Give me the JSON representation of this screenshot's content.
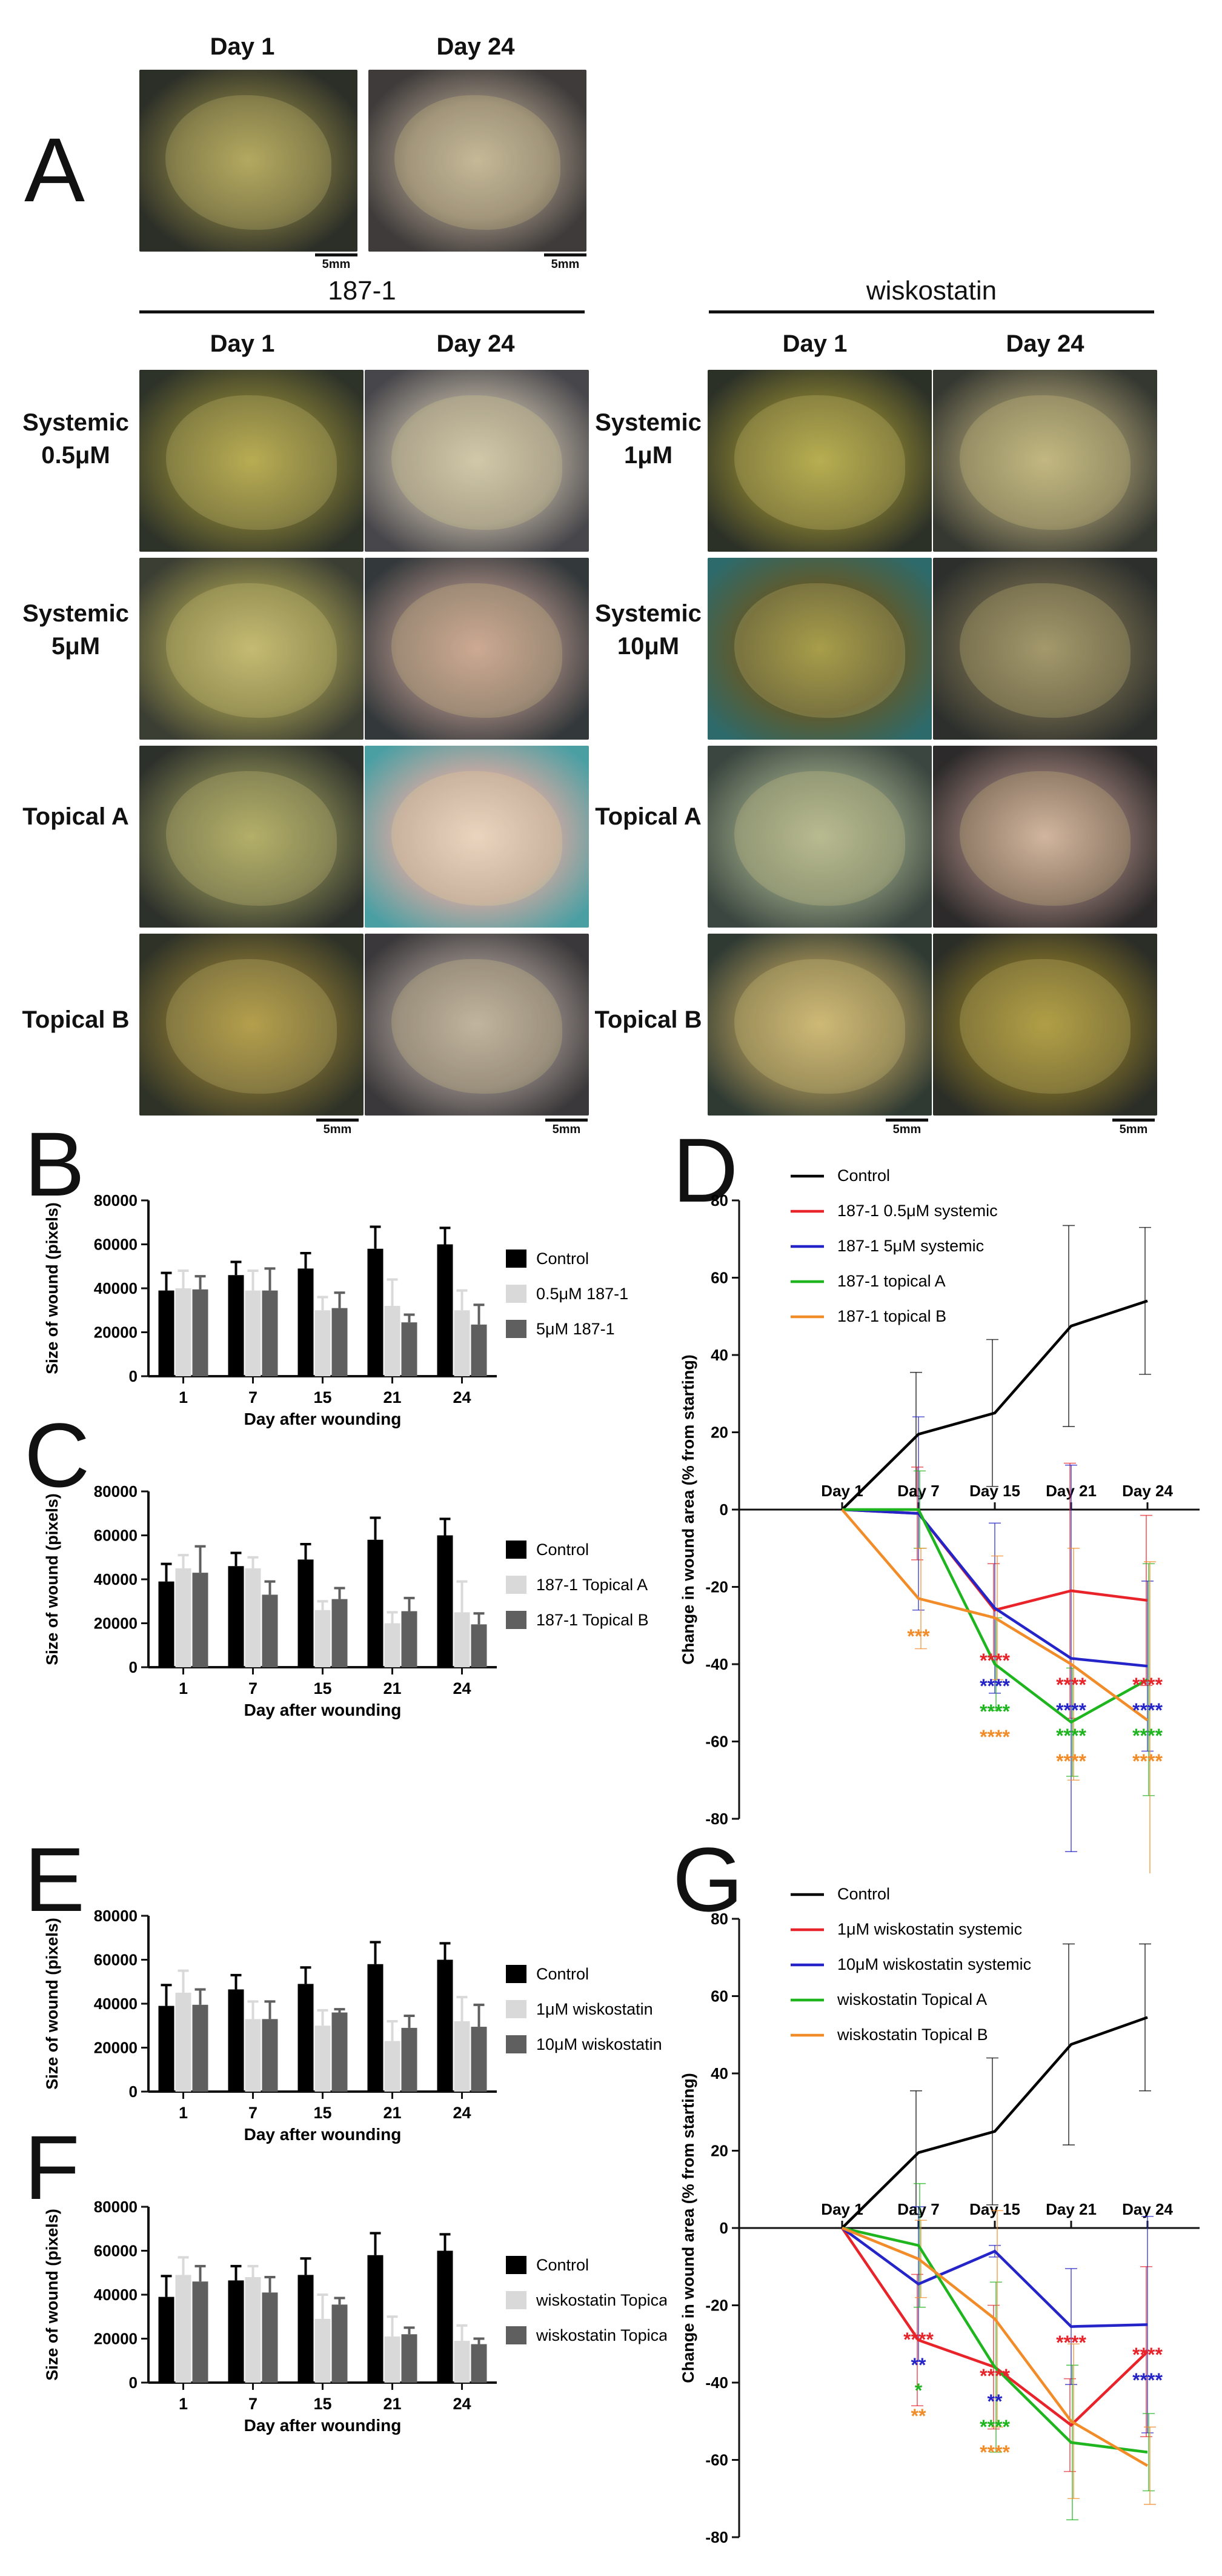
{
  "panelA": {
    "letter": "A",
    "top": {
      "day1": "Day 1",
      "day24": "Day 24",
      "photos": [
        {
          "bg": "#3a3f38"
        },
        {
          "bg": "#5d5a57"
        }
      ],
      "scalebars": [
        "5mm",
        "5mm"
      ]
    },
    "group1871": {
      "title": "187-1",
      "day1": "Day 1",
      "day24": "Day 24",
      "rows": [
        "Systemic 0.5μM",
        "Systemic 5μM",
        "Topical A",
        "Topical B"
      ],
      "scalebars": [
        "5mm",
        "5mm"
      ]
    },
    "groupWisko": {
      "title": "wiskostatin",
      "day1": "Day 1",
      "day24": "Day 24",
      "rows": [
        "Systemic 1μM",
        "Systemic 10μM",
        "Topical A",
        "Topical B"
      ],
      "scalebars": [
        "5mm",
        "5mm"
      ]
    }
  },
  "letters": {
    "B": "B",
    "C": "C",
    "D": "D",
    "E": "E",
    "F": "F",
    "G": "G"
  },
  "colors": {
    "black": "#000000",
    "light": "#d9d9d9",
    "dark": "#5f5f5f",
    "red": "#e8232a",
    "blue": "#2424c8",
    "green": "#1fb51f",
    "orange": "#f28c28"
  },
  "chart_data": [
    {
      "id": "B",
      "type": "bar",
      "categories": [
        "1",
        "7",
        "15",
        "21",
        "24"
      ],
      "xlabel": "Day after wounding",
      "ylabel": "Size of wound (pixels)",
      "ylim": [
        0,
        80000
      ],
      "yticks": [
        "0",
        "20000",
        "40000",
        "60000",
        "80000"
      ],
      "series": [
        {
          "name": "Control",
          "color": "#000000",
          "values": [
            39000,
            46000,
            49000,
            58000,
            60000
          ],
          "err": [
            8000,
            6000,
            7000,
            10000,
            7500
          ]
        },
        {
          "name": "0.5μM 187-1",
          "color": "#d9d9d9",
          "values": [
            40000,
            39000,
            30000,
            32000,
            30000
          ],
          "err": [
            8000,
            9000,
            6000,
            12000,
            9000
          ]
        },
        {
          "name": "5μM 187-1",
          "color": "#5f5f5f",
          "values": [
            39500,
            39000,
            31000,
            24500,
            23500
          ],
          "err": [
            6000,
            10000,
            7000,
            3500,
            9000
          ]
        }
      ]
    },
    {
      "id": "C",
      "type": "bar",
      "categories": [
        "1",
        "7",
        "15",
        "21",
        "24"
      ],
      "xlabel": "Day after wounding",
      "ylabel": "Size of wound (pixels)",
      "ylim": [
        0,
        80000
      ],
      "yticks": [
        "0",
        "20000",
        "40000",
        "60000",
        "80000"
      ],
      "series": [
        {
          "name": "Control",
          "color": "#000000",
          "values": [
            39000,
            46000,
            49000,
            58000,
            60000
          ],
          "err": [
            8000,
            6000,
            7000,
            10000,
            7500
          ]
        },
        {
          "name": "187-1 Topical A",
          "color": "#d9d9d9",
          "values": [
            45000,
            45000,
            26000,
            20000,
            25000
          ],
          "err": [
            6000,
            5000,
            4000,
            5000,
            14000
          ]
        },
        {
          "name": "187-1 Topical B",
          "color": "#5f5f5f",
          "values": [
            43000,
            33000,
            31000,
            25500,
            19500
          ],
          "err": [
            12000,
            6000,
            5000,
            6000,
            5000
          ]
        }
      ]
    },
    {
      "id": "E",
      "type": "bar",
      "categories": [
        "1",
        "7",
        "15",
        "21",
        "24"
      ],
      "xlabel": "Day after wounding",
      "ylabel": "Size of wound (pixels)",
      "ylim": [
        0,
        80000
      ],
      "yticks": [
        "0",
        "20000",
        "40000",
        "60000",
        "80000"
      ],
      "series": [
        {
          "name": "Control",
          "color": "#000000",
          "values": [
            39000,
            46500,
            49000,
            58000,
            60000
          ],
          "err": [
            9500,
            6500,
            7500,
            10000,
            7500
          ]
        },
        {
          "name": "1μM wiskostatin",
          "color": "#d9d9d9",
          "values": [
            45000,
            33000,
            30000,
            23000,
            32000
          ],
          "err": [
            10000,
            8000,
            7000,
            9000,
            11000
          ]
        },
        {
          "name": "10μM wiskostatin",
          "color": "#5f5f5f",
          "values": [
            39500,
            33000,
            36000,
            29000,
            29500
          ],
          "err": [
            7000,
            8000,
            1500,
            5500,
            10000
          ]
        }
      ]
    },
    {
      "id": "F",
      "type": "bar",
      "categories": [
        "1",
        "7",
        "15",
        "21",
        "24"
      ],
      "xlabel": "Day after wounding",
      "ylabel": "Size of wound (pixels)",
      "ylim": [
        0,
        80000
      ],
      "yticks": [
        "0",
        "20000",
        "40000",
        "60000",
        "80000"
      ],
      "series": [
        {
          "name": "Control",
          "color": "#000000",
          "values": [
            39000,
            46500,
            49000,
            58000,
            60000
          ],
          "err": [
            9500,
            6500,
            7500,
            10000,
            7500
          ]
        },
        {
          "name": "wiskostatin Topical A",
          "color": "#d9d9d9",
          "values": [
            49000,
            48000,
            29000,
            21000,
            19000
          ],
          "err": [
            8000,
            5000,
            11000,
            9000,
            7000
          ]
        },
        {
          "name": "wiskostatin Topical B",
          "color": "#5f5f5f",
          "values": [
            46000,
            41000,
            35500,
            22000,
            17500
          ],
          "err": [
            7000,
            7000,
            3000,
            3000,
            2500
          ]
        }
      ]
    },
    {
      "id": "D",
      "type": "line",
      "x": [
        "Day 1",
        "Day 7",
        "Day 15",
        "Day 21",
        "Day 24"
      ],
      "ylabel": "Change in wound area (% from starting)",
      "ylim": [
        -80,
        80
      ],
      "yticks": [
        "80",
        "60",
        "40",
        "20",
        "0",
        "-20",
        "-40",
        "-60",
        "-80"
      ],
      "legend_position": "top-left",
      "series": [
        {
          "name": "Control",
          "color": "#000000",
          "values": [
            0,
            19.5,
            25,
            47.5,
            54
          ],
          "err": [
            0,
            16,
            19,
            26,
            19
          ]
        },
        {
          "name": "187-1 0.5μM systemic",
          "color": "#e8232a",
          "values": [
            0,
            -1,
            -26,
            -21,
            -23.5
          ],
          "err": [
            0,
            12,
            12,
            33,
            22
          ]
        },
        {
          "name": "187-1 5μM systemic",
          "color": "#2424c8",
          "values": [
            0,
            -1,
            -25.5,
            -38.5,
            -40.5
          ],
          "err": [
            0,
            25,
            22,
            50,
            22
          ]
        },
        {
          "name": "187-1 topical A",
          "color": "#1fb51f",
          "values": [
            0,
            0,
            -40,
            -55,
            -44
          ],
          "err": [
            0,
            10,
            12,
            14,
            30
          ]
        },
        {
          "name": "187-1 topical B",
          "color": "#f28c28",
          "values": [
            0,
            -23,
            -28,
            -40,
            -54.5
          ],
          "err": [
            0,
            13,
            16,
            30,
            41
          ]
        }
      ],
      "significance": [
        {
          "x": "Day 7",
          "marks": [
            {
              "text": "***",
              "color": "#f28c28"
            }
          ]
        },
        {
          "x": "Day 15",
          "marks": [
            {
              "text": "****",
              "color": "#e8232a"
            },
            {
              "text": "****",
              "color": "#2424c8"
            },
            {
              "text": "****",
              "color": "#1fb51f"
            },
            {
              "text": "****",
              "color": "#f28c28"
            }
          ]
        },
        {
          "x": "Day 21",
          "marks": [
            {
              "text": "****",
              "color": "#e8232a"
            },
            {
              "text": "****",
              "color": "#2424c8"
            },
            {
              "text": "****",
              "color": "#1fb51f"
            },
            {
              "text": "****",
              "color": "#f28c28"
            }
          ]
        },
        {
          "x": "Day 24",
          "marks": [
            {
              "text": "****",
              "color": "#e8232a"
            },
            {
              "text": "****",
              "color": "#2424c8"
            },
            {
              "text": "****",
              "color": "#1fb51f"
            },
            {
              "text": "****",
              "color": "#f28c28"
            }
          ]
        }
      ]
    },
    {
      "id": "G",
      "type": "line",
      "x": [
        "Day 1",
        "Day 7",
        "Day 15",
        "Day 21",
        "Day 24"
      ],
      "ylabel": "Change in wound area (% from starting)",
      "ylim": [
        -80,
        80
      ],
      "yticks": [
        "80",
        "60",
        "40",
        "20",
        "0",
        "-20",
        "-40",
        "-60",
        "-80"
      ],
      "legend_position": "top-left",
      "series": [
        {
          "name": "Control",
          "color": "#000000",
          "values": [
            0,
            19.5,
            25,
            47.5,
            54.5
          ],
          "err": [
            0,
            16,
            19,
            26,
            19
          ]
        },
        {
          "name": "1μM wiskostatin systemic",
          "color": "#e8232a",
          "values": [
            0,
            -29,
            -36,
            -51,
            -32
          ],
          "err": [
            0,
            17,
            16,
            12,
            22
          ]
        },
        {
          "name": "10μM wiskostatin systemic",
          "color": "#2424c8",
          "values": [
            0,
            -14.5,
            -6,
            -25.5,
            -25
          ],
          "err": [
            0,
            20,
            1.5,
            15,
            28
          ]
        },
        {
          "name": "wiskostatin Topical A",
          "color": "#1fb51f",
          "values": [
            0,
            -4.5,
            -36,
            -55.5,
            -58
          ],
          "err": [
            0,
            16,
            22,
            20,
            10
          ]
        },
        {
          "name": "wiskostatin Topical B",
          "color": "#f28c28",
          "values": [
            0,
            -8,
            -23.5,
            -50,
            -61.5
          ],
          "err": [
            0,
            10,
            28,
            20,
            10
          ]
        }
      ],
      "significance": [
        {
          "x": "Day 7",
          "marks": [
            {
              "text": "****",
              "color": "#e8232a"
            },
            {
              "text": "**",
              "color": "#2424c8"
            },
            {
              "text": "*",
              "color": "#1fb51f"
            },
            {
              "text": "**",
              "color": "#f28c28"
            }
          ]
        },
        {
          "x": "Day 15",
          "marks": [
            {
              "text": "****",
              "color": "#e8232a"
            },
            {
              "text": "**",
              "color": "#2424c8"
            },
            {
              "text": "****",
              "color": "#1fb51f"
            },
            {
              "text": "****",
              "color": "#f28c28"
            }
          ]
        },
        {
          "x": "Day 21",
          "marks": [
            {
              "text": "****",
              "color": "#e8232a"
            }
          ]
        },
        {
          "x": "Day 24",
          "marks": [
            {
              "text": "****",
              "color": "#e8232a"
            },
            {
              "text": "****",
              "color": "#2424c8"
            }
          ]
        }
      ]
    }
  ]
}
